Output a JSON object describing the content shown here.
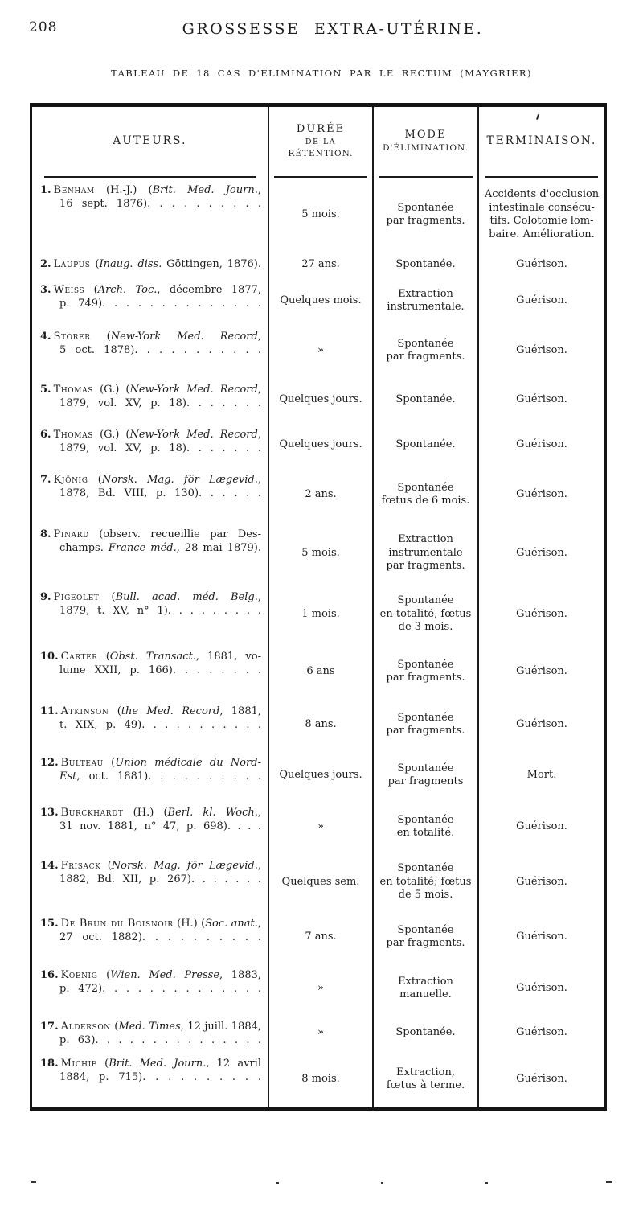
{
  "page": {
    "number": "208",
    "running_title": "GROSSESSE EXTRA-UTÉRINE.",
    "caption": "TABLEAU DE 18 CAS D'ÉLIMINATION PAR LE RECTUM (MAYGRIER)"
  },
  "colors": {
    "ink": "#1c1c1c",
    "paper": "#ffffff"
  },
  "table": {
    "header": {
      "auteurs": "AUTEURS.",
      "duree_lines": [
        "DURÉE",
        "DE LA",
        "RÉTENTION."
      ],
      "mode_lines": [
        "MODE",
        "D'ÉLIMINATION."
      ],
      "terminaison": "TERMINAISON."
    },
    "rows": [
      {
        "num": "1.",
        "author": "~Benham~ (H.-J.) (*Brit. Med. Journ.*,\n16 sept. 1876). . . . . . . . . .",
        "duree": "5 mois.",
        "mode": "Spontanée\npar fragments.",
        "terminaison": "Accidents d'occlusion\nintestinale consécu-\ntifs. Colotomie lom-\nbaire. Amélioration."
      },
      {
        "num": "2.",
        "author": "~Laupus~ (*Inaug. diss.* Göttingen, 1876).",
        "duree": "27 ans.",
        "mode": "Spontanée.",
        "terminaison": "Guérison."
      },
      {
        "num": "3.",
        "author": "~Weiss~ (*Arch. Toc.*, décembre 1877,\np. 749). . . . . . . . . . . . . .",
        "duree": "Quelques mois.",
        "mode": "Extraction\ninstrumentale.",
        "terminaison": "Guérison."
      },
      {
        "num": "4.",
        "author": "~Storer~ (*New-York Med. Record*,\n5 oct. 1878). . . . . . . . . . .",
        "duree": "»",
        "mode": "Spontanée\npar fragments.",
        "terminaison": "Guérison."
      },
      {
        "num": "5.",
        "author": "~Thomas~ (G.) (*New-York Med. Record*,\n1879, vol. XV, p. 18). . . . . . .",
        "duree": "Quelques jours.",
        "mode": "Spontanée.",
        "terminaison": "Guérison."
      },
      {
        "num": "6.",
        "author": "~Thomas~ (G.) (*New-York Med. Record*,\n1879, vol. XV, p. 18). . . . . . .",
        "duree": "Quelques jours.",
        "mode": "Spontanée.",
        "terminaison": "Guérison."
      },
      {
        "num": "7.",
        "author": "~Kjönig~ (*Norsk. Mag. för Lægevid.*,\n1878, Bd. VIII, p. 130). . . . . .",
        "duree": "2 ans.",
        "mode": "Spontanée\nfœtus de 6 mois.",
        "terminaison": "Guérison."
      },
      {
        "num": "8.",
        "author": "~Pinard~ (observ. recueillie par Des-\nchamps. *France méd.*, 28 mai 1879).",
        "duree": "5 mois.",
        "mode": "Extraction\ninstrumentale\npar fragments.",
        "terminaison": "Guérison."
      },
      {
        "num": "9.",
        "author": "~Pigeolet~ (*Bull. acad. méd. Belg.*,\n1879, t. XV, n° 1). . . . . . . . .",
        "duree": "1 mois.",
        "mode": "Spontanée\nen totalité, fœtus\nde 3 mois.",
        "terminaison": "Guérison."
      },
      {
        "num": "10.",
        "author": "~Carter~ (*Obst. Transact.*, 1881, vo-\nlume XXII, p. 166). . . . . . . .",
        "duree": "6 ans",
        "mode": "Spontanée\npar fragments.",
        "terminaison": "Guérison."
      },
      {
        "num": "11.",
        "author": "~Atkinson~ (*the Med. Record*, 1881,\nt. XIX, p. 49). . . . . . . . . . .",
        "duree": "8 ans.",
        "mode": "Spontanée\npar fragments.",
        "terminaison": "Guérison."
      },
      {
        "num": "12.",
        "author": "~Bulteau~ (*Union médicale du Nord-*\n*Est*, oct. 1881). . . . . . . . . .",
        "duree": "Quelques jours.",
        "mode": "Spontanée\npar fragments",
        "terminaison": "Mort."
      },
      {
        "num": "13.",
        "author": "~Burckhardt~ (H.) (*Berl. kl. Woch.*,\n31 nov. 1881, n° 47, p. 698). . . .",
        "duree": "»",
        "mode": "Spontanée\nen totalité.",
        "terminaison": "Guérison."
      },
      {
        "num": "14.",
        "author": "~Frisack~ (*Norsk. Mag. för Lægevid.*,\n1882, Bd. XII, p. 267). . . . . . .",
        "duree": "Quelques sem.",
        "mode": "Spontanée\nen totalité; fœtus\nde 5 mois.",
        "terminaison": "Guérison."
      },
      {
        "num": "15.",
        "author": "~De Brun du Boisnoir~ (H.) (*Soc. anat.*,\n27 oct. 1882). . . . . . . . . .",
        "duree": "7 ans.",
        "mode": "Spontanée\npar fragments.",
        "terminaison": "Guérison."
      },
      {
        "num": "16.",
        "author": "~Koenig~ (*Wien. Med. Presse*, 1883,\np. 472). . . . . . . . . . . . . .",
        "duree": "»",
        "mode": "Extraction\nmanuelle.",
        "terminaison": "Guérison."
      },
      {
        "num": "17.",
        "author": "~Alderson~ (*Med. Times*, 12 juill. 1884,\np. 63). . . . . . . . . . . . . . .",
        "duree": "»",
        "mode": "Spontanée.",
        "terminaison": "Guérison."
      },
      {
        "num": "18.",
        "author": "~Michie~ (*Brit. Med. Journ.*, 12 avril\n1884, p. 715). . . . . . . . . .",
        "duree": "8 mois.",
        "mode": "Extraction,\nfœtus à terme.",
        "terminaison": "Guérison."
      }
    ]
  }
}
